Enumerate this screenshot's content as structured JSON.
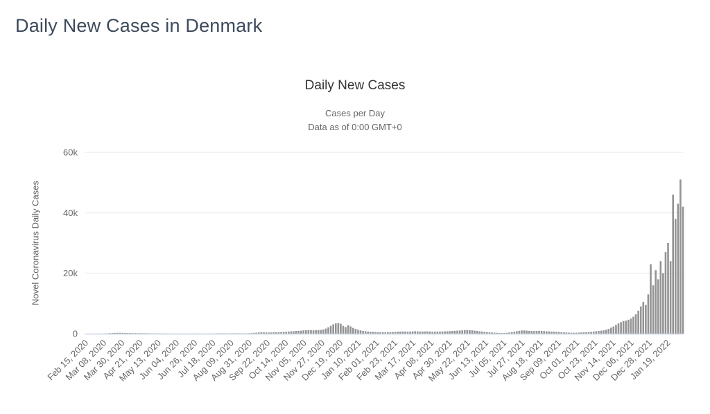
{
  "page": {
    "title": "Daily New Cases in Denmark"
  },
  "chart": {
    "title": "Daily New Cases",
    "subtitle_line1": "Cases per Day",
    "subtitle_line2": "Data as of 0:00 GMT+0",
    "y_axis_title": "Novel Coronavirus Daily Cases"
  },
  "colors": {
    "background": "#ffffff",
    "page_title": "#3d4a5c",
    "chart_title": "#333333",
    "subtitle": "#666666",
    "axis_label": "#666666",
    "gridline": "#e6e6e6",
    "axis_line": "#ccd6eb",
    "bar": "#949494"
  },
  "chart_data": {
    "type": "bar",
    "title": "Daily New Cases",
    "subtitle": [
      "Cases per Day",
      "Data as of 0:00 GMT+0"
    ],
    "series_name": "Novel Coronavirus Daily Cases",
    "xlabel": "",
    "ylabel": "Novel Coronavirus Daily Cases",
    "ylim": [
      0,
      60000
    ],
    "grid": "horizontal",
    "legend": "none",
    "y_ticks": [
      {
        "value": 0,
        "label": "0"
      },
      {
        "value": 20000,
        "label": "20k"
      },
      {
        "value": 40000,
        "label": "40k"
      },
      {
        "value": 60000,
        "label": "60k"
      }
    ],
    "x_start_date": "2020-02-15",
    "x_step_days": 3,
    "x_tick_every_days": 22,
    "x_tick_labels": [
      "Feb 15, 2020",
      "Mar 08, 2020",
      "Mar 30, 2020",
      "Apr 21, 2020",
      "May 13, 2020",
      "Jun 04, 2020",
      "Jun 26, 2020",
      "Jul 18, 2020",
      "Aug 09, 2020",
      "Aug 31, 2020",
      "Sep 22, 2020",
      "Oct 14, 2020",
      "Nov 05, 2020",
      "Nov 27, 2020",
      "Dec 19, 2020",
      "Jan 10, 2021",
      "Feb 01, 2021",
      "Feb 23, 2021",
      "Mar 17, 2021",
      "Apr 08, 2021",
      "Apr 30, 2021",
      "May 22, 2021",
      "Jun 13, 2021",
      "Jul 05, 2021",
      "Jul 27, 2021",
      "Aug 18, 2021",
      "Sep 09, 2021",
      "Oct 01, 2021",
      "Oct 23, 2021",
      "Nov 14, 2021",
      "Dec 06, 2021",
      "Dec 28, 2021",
      "Jan 19, 2022"
    ],
    "values": [
      0,
      0,
      0,
      1,
      2,
      3,
      6,
      30,
      60,
      120,
      190,
      240,
      270,
      290,
      300,
      280,
      260,
      240,
      220,
      200,
      190,
      180,
      170,
      160,
      150,
      140,
      130,
      120,
      110,
      100,
      90,
      80,
      70,
      60,
      55,
      50,
      45,
      40,
      38,
      35,
      32,
      30,
      35,
      40,
      50,
      60,
      50,
      40,
      35,
      30,
      40,
      60,
      80,
      100,
      120,
      140,
      120,
      100,
      110,
      130,
      150,
      140,
      120,
      110,
      100,
      120,
      150,
      200,
      280,
      350,
      420,
      480,
      450,
      400,
      380,
      420,
      450,
      480,
      500,
      550,
      600,
      650,
      700,
      760,
      820,
      900,
      950,
      1000,
      1100,
      1150,
      1200,
      1150,
      1100,
      1150,
      1200,
      1250,
      1400,
      1700,
      2100,
      2600,
      3100,
      3400,
      3500,
      3300,
      2600,
      2200,
      2800,
      2400,
      1900,
      1600,
      1300,
      1100,
      900,
      800,
      700,
      650,
      600,
      550,
      500,
      480,
      450,
      470,
      500,
      520,
      550,
      600,
      650,
      700,
      750,
      700,
      680,
      720,
      760,
      800,
      750,
      700,
      720,
      740,
      760,
      700,
      650,
      680,
      700,
      720,
      740,
      760,
      800,
      850,
      900,
      950,
      1000,
      1050,
      1100,
      1150,
      1200,
      1150,
      1100,
      1000,
      900,
      800,
      700,
      600,
      500,
      450,
      400,
      350,
      300,
      250,
      220,
      250,
      300,
      400,
      500,
      650,
      800,
      950,
      1050,
      1100,
      1000,
      950,
      900,
      850,
      900,
      950,
      900,
      850,
      800,
      750,
      700,
      650,
      600,
      550,
      500,
      450,
      400,
      350,
      320,
      300,
      320,
      350,
      400,
      450,
      500,
      550,
      600,
      700,
      800,
      900,
      1000,
      1100,
      1300,
      1600,
      2000,
      2400,
      2900,
      3400,
      3800,
      4200,
      4300,
      4600,
      5000,
      5600,
      6400,
      7600,
      9000,
      10500,
      9500,
      13000,
      23000,
      16000,
      21000,
      18000,
      24000,
      20000,
      27000,
      30000,
      24000,
      46000,
      38000,
      43000,
      51000,
      42000
    ]
  }
}
